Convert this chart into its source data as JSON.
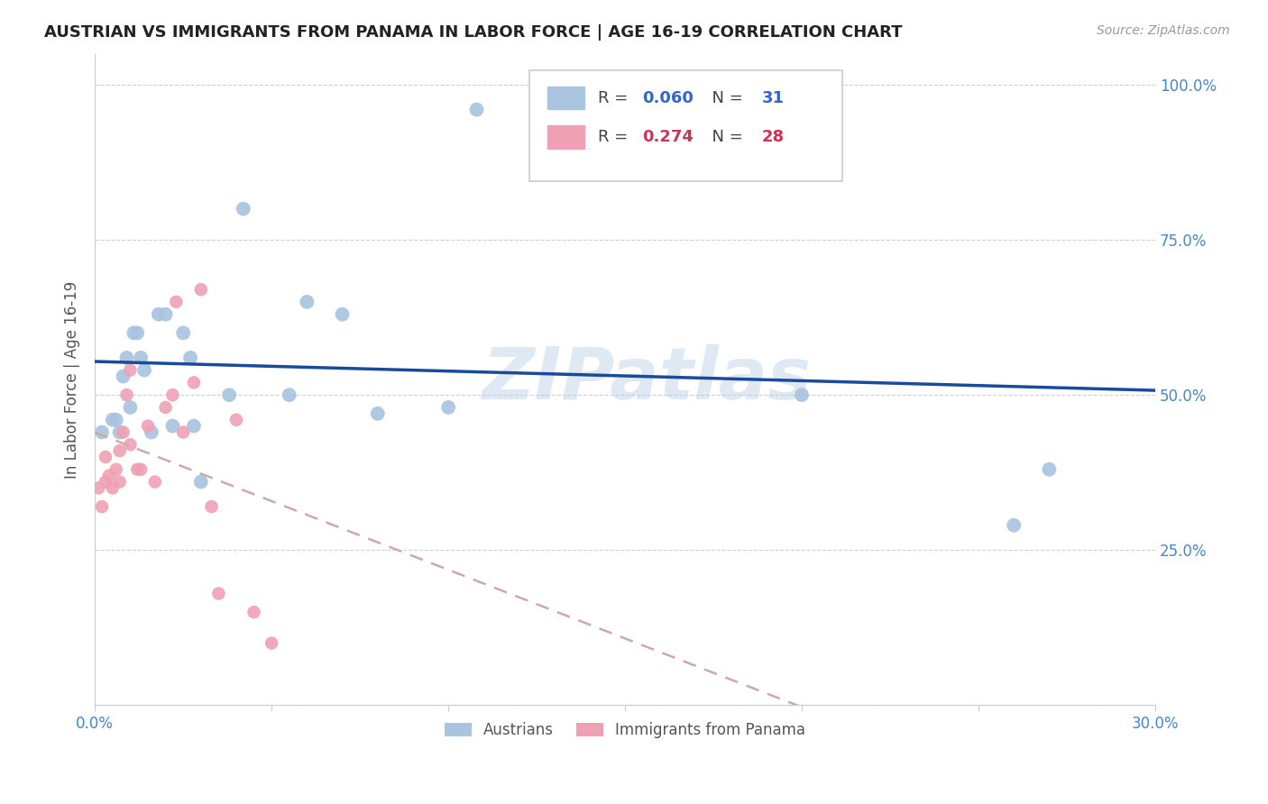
{
  "title": "AUSTRIAN VS IMMIGRANTS FROM PANAMA IN LABOR FORCE | AGE 16-19 CORRELATION CHART",
  "source": "Source: ZipAtlas.com",
  "ylabel": "In Labor Force | Age 16-19",
  "xlim": [
    0.0,
    0.3
  ],
  "ylim": [
    0.0,
    1.05
  ],
  "ytick_vals": [
    0.0,
    0.25,
    0.5,
    0.75,
    1.0
  ],
  "ytick_labels": [
    "",
    "25.0%",
    "50.0%",
    "75.0%",
    "100.0%"
  ],
  "xtick_positions": [
    0.0,
    0.05,
    0.1,
    0.15,
    0.2,
    0.25,
    0.3
  ],
  "xtick_labels": [
    "0.0%",
    "",
    "",
    "",
    "",
    "",
    "30.0%"
  ],
  "R_austrians": 0.06,
  "N_austrians": 31,
  "R_panama": 0.274,
  "N_panama": 28,
  "color_austrians": "#a8c4e0",
  "color_panama": "#f0a0b5",
  "line_color_austrians": "#1a4a9a",
  "line_color_panama": "#d06070",
  "background_color": "#ffffff",
  "grid_color": "#d0d0d0",
  "watermark": "ZIPatlas",
  "austrians_x": [
    0.002,
    0.005,
    0.006,
    0.007,
    0.008,
    0.009,
    0.01,
    0.011,
    0.012,
    0.013,
    0.014,
    0.016,
    0.018,
    0.02,
    0.022,
    0.025,
    0.027,
    0.028,
    0.03,
    0.038,
    0.042,
    0.055,
    0.06,
    0.07,
    0.08,
    0.1,
    0.108,
    0.13,
    0.2,
    0.26,
    0.27
  ],
  "austrians_y": [
    0.44,
    0.46,
    0.46,
    0.44,
    0.53,
    0.56,
    0.48,
    0.6,
    0.6,
    0.56,
    0.54,
    0.44,
    0.63,
    0.63,
    0.45,
    0.6,
    0.56,
    0.45,
    0.36,
    0.5,
    0.8,
    0.5,
    0.65,
    0.63,
    0.47,
    0.48,
    0.96,
    0.96,
    0.5,
    0.29,
    0.38
  ],
  "panama_x": [
    0.001,
    0.002,
    0.003,
    0.003,
    0.004,
    0.005,
    0.006,
    0.007,
    0.007,
    0.008,
    0.009,
    0.01,
    0.01,
    0.012,
    0.013,
    0.015,
    0.017,
    0.02,
    0.022,
    0.023,
    0.025,
    0.028,
    0.03,
    0.033,
    0.035,
    0.04,
    0.045,
    0.05
  ],
  "panama_y": [
    0.35,
    0.32,
    0.36,
    0.4,
    0.37,
    0.35,
    0.38,
    0.36,
    0.41,
    0.44,
    0.5,
    0.54,
    0.42,
    0.38,
    0.38,
    0.45,
    0.36,
    0.48,
    0.5,
    0.65,
    0.44,
    0.52,
    0.67,
    0.32,
    0.18,
    0.46,
    0.15,
    0.1
  ]
}
